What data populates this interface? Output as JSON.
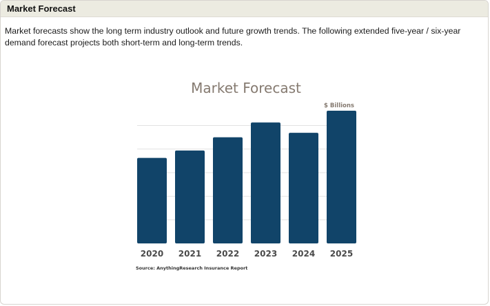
{
  "header": {
    "title": "Market Forecast"
  },
  "intro": {
    "text": "Market forecasts show the long term industry outlook and future growth trends. The following extended five-year / six-year demand forecast projects both short-term and long-term trends."
  },
  "chart_data": {
    "type": "bar",
    "title": "Market Forecast",
    "unit_label": "$ Billions",
    "categories": [
      "2020",
      "2021",
      "2022",
      "2023",
      "2024",
      "2025"
    ],
    "values": [
      58,
      63,
      72,
      82,
      75,
      90
    ],
    "ylim": [
      0,
      90
    ],
    "gridlines": [
      16,
      32,
      48,
      64,
      80
    ],
    "xlabel": "",
    "ylabel": "",
    "grid": true,
    "bar_color": "#114469",
    "source": "Source: AnythingResearch Insurance Report"
  }
}
